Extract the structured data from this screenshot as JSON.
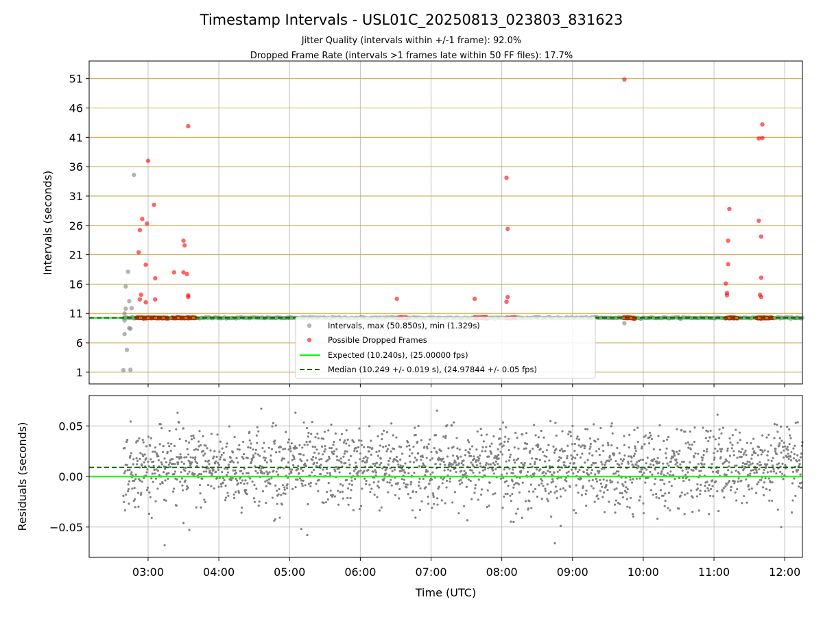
{
  "chart_data": {
    "title": "Timestamp Intervals - USL01C_20250813_023803_831623",
    "subtitle_lines": [
      "Jitter Quality (intervals within +/-1 frame): 92.0%",
      "Dropped Frame Rate (intervals >1 frames late within 50 FF files): 17.7%"
    ],
    "xlabel": "Time (UTC)",
    "x_tick_labels": [
      "03:00",
      "04:00",
      "05:00",
      "06:00",
      "07:00",
      "08:00",
      "09:00",
      "10:00",
      "11:00",
      "12:00"
    ],
    "colors": {
      "intervals": "#808080",
      "dropped": "#ff0000",
      "expected": "#00ff00",
      "median": "#006400",
      "hgrid_top": "#c8a84a",
      "grid": "#b0b0b0"
    },
    "panels": [
      {
        "type": "scatter",
        "ylabel": "Intervals (seconds)",
        "xlim": [
          "02:10",
          "12:15"
        ],
        "ylim": [
          -1.0,
          54.0
        ],
        "yticks": [
          1,
          6,
          11,
          16,
          21,
          26,
          31,
          36,
          41,
          46,
          51
        ],
        "grid": true,
        "legend_position": "lower center",
        "series": [
          {
            "name": "Intervals, max (50.850s), min (1.329s)",
            "type": "scatter",
            "points": [
              {
                "x": "02:39",
                "y": 1.33
              },
              {
                "x": "02:40",
                "y": 7.5
              },
              {
                "x": "02:40",
                "y": 9.8
              },
              {
                "x": "02:40",
                "y": 11.0
              },
              {
                "x": "02:41",
                "y": 11.8
              },
              {
                "x": "02:41",
                "y": 15.6
              },
              {
                "x": "02:42",
                "y": 4.8
              },
              {
                "x": "02:43",
                "y": 18.1
              },
              {
                "x": "02:44",
                "y": 8.5
              },
              {
                "x": "02:44",
                "y": 13.1
              },
              {
                "x": "02:45",
                "y": 1.4
              },
              {
                "x": "02:45",
                "y": 8.4
              },
              {
                "x": "02:46",
                "y": 11.9
              },
              {
                "x": "02:47",
                "y": 10.4
              },
              {
                "x": "02:48",
                "y": 34.6
              },
              {
                "x": "02:49",
                "y": 10.2
              },
              {
                "x": "09:44",
                "y": 9.35
              },
              {
                "x": "03:10",
                "y": 10.2
              },
              {
                "x": "04:00",
                "y": 10.2
              },
              {
                "x": "05:00",
                "y": 10.24
              },
              {
                "x": "06:00",
                "y": 10.23
              },
              {
                "x": "07:00",
                "y": 10.25
              },
              {
                "x": "08:30",
                "y": 10.24
              },
              {
                "x": "09:15",
                "y": 10.25
              },
              {
                "x": "10:30",
                "y": 10.24
              },
              {
                "x": "11:40",
                "y": 10.24
              },
              {
                "x": "12:10",
                "y": 10.25
              }
            ]
          },
          {
            "name": "Possible Dropped Frames",
            "type": "scatter",
            "points": [
              {
                "x": "02:52",
                "y": 21.4
              },
              {
                "x": "02:53",
                "y": 13.4
              },
              {
                "x": "02:53",
                "y": 25.2
              },
              {
                "x": "02:54",
                "y": 14.2
              },
              {
                "x": "02:55",
                "y": 27.1
              },
              {
                "x": "02:58",
                "y": 19.3
              },
              {
                "x": "02:58",
                "y": 12.9
              },
              {
                "x": "02:59",
                "y": 26.3
              },
              {
                "x": "03:00",
                "y": 37.0
              },
              {
                "x": "03:05",
                "y": 29.5
              },
              {
                "x": "03:06",
                "y": 17.0
              },
              {
                "x": "03:06",
                "y": 13.4
              },
              {
                "x": "03:22",
                "y": 18.0
              },
              {
                "x": "03:30",
                "y": 23.4
              },
              {
                "x": "03:31",
                "y": 22.6
              },
              {
                "x": "03:30",
                "y": 18.0
              },
              {
                "x": "03:33",
                "y": 17.7
              },
              {
                "x": "03:34",
                "y": 14.1
              },
              {
                "x": "03:34",
                "y": 13.8
              },
              {
                "x": "03:34",
                "y": 42.9
              },
              {
                "x": "06:31",
                "y": 13.5
              },
              {
                "x": "07:37",
                "y": 13.5
              },
              {
                "x": "08:04",
                "y": 34.1
              },
              {
                "x": "08:05",
                "y": 25.4
              },
              {
                "x": "08:04",
                "y": 13.0
              },
              {
                "x": "08:05",
                "y": 13.8
              },
              {
                "x": "09:44",
                "y": 50.85
              },
              {
                "x": "11:10",
                "y": 16.1
              },
              {
                "x": "11:11",
                "y": 14.5
              },
              {
                "x": "11:11",
                "y": 14.1
              },
              {
                "x": "11:12",
                "y": 19.4
              },
              {
                "x": "11:12",
                "y": 23.4
              },
              {
                "x": "11:13",
                "y": 28.8
              },
              {
                "x": "11:38",
                "y": 26.8
              },
              {
                "x": "11:38",
                "y": 40.8
              },
              {
                "x": "11:39",
                "y": 14.2
              },
              {
                "x": "11:40",
                "y": 24.1
              },
              {
                "x": "11:40",
                "y": 13.8
              },
              {
                "x": "11:40",
                "y": 17.1
              },
              {
                "x": "11:41",
                "y": 40.9
              },
              {
                "x": "11:41",
                "y": 43.2
              }
            ],
            "near_baseline_clusters_y": 10.24,
            "near_baseline_clusters_x": [
              [
                "02:50",
                "03:17"
              ],
              [
                "03:20",
                "03:40"
              ],
              [
                "06:31",
                "06:40"
              ],
              [
                "07:36",
                "07:48"
              ],
              [
                "08:04",
                "08:12"
              ],
              [
                "09:43",
                "09:53"
              ],
              [
                "11:10",
                "11:20"
              ],
              [
                "11:36",
                "11:50"
              ]
            ]
          },
          {
            "name": "Expected (10.240s), (25.00000 fps)",
            "type": "hline",
            "y": 10.24
          },
          {
            "name": "Median (10.249 +/- 0.019 s), (24.97844 +/- 0.05 fps)",
            "type": "hline",
            "y": 10.249
          }
        ]
      },
      {
        "type": "scatter",
        "ylabel": "Residuals (seconds)",
        "xlim": [
          "02:10",
          "12:15"
        ],
        "ylim": [
          -0.08,
          0.08
        ],
        "yticks": [
          0.05,
          0.0,
          -0.05
        ],
        "ytick_labels": [
          "0.05",
          "0.00",
          "−0.05"
        ],
        "grid": true,
        "residual_band": {
          "center": 0.009,
          "spread": 0.019,
          "x_range": [
            "02:39",
            "12:15"
          ]
        },
        "outliers": [
          {
            "x": "03:25",
            "y": 0.063
          },
          {
            "x": "04:36",
            "y": 0.067
          },
          {
            "x": "05:05",
            "y": 0.063
          },
          {
            "x": "07:05",
            "y": 0.065
          },
          {
            "x": "11:03",
            "y": 0.061
          },
          {
            "x": "03:14",
            "y": -0.068
          },
          {
            "x": "03:35",
            "y": -0.053
          },
          {
            "x": "05:10",
            "y": -0.052
          },
          {
            "x": "05:15",
            "y": -0.058
          },
          {
            "x": "08:45",
            "y": -0.066
          },
          {
            "x": "08:50",
            "y": -0.049
          },
          {
            "x": "11:57",
            "y": -0.05
          },
          {
            "x": "08:10",
            "y": -0.045
          },
          {
            "x": "03:30",
            "y": -0.046
          }
        ],
        "series": [
          {
            "name": "Expected",
            "type": "hline",
            "y": 0.0
          },
          {
            "name": "Median",
            "type": "hline",
            "y": 0.009
          }
        ]
      }
    ]
  }
}
